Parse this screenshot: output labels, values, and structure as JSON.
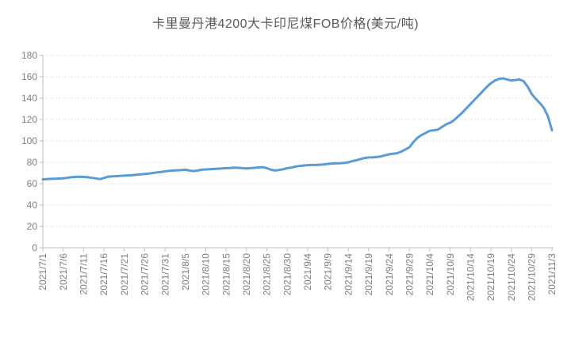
{
  "chart_data": {
    "type": "line",
    "title": "卡里曼丹港4200大卡印尼煤FOB价格(美元/吨)",
    "xlabel": "",
    "ylabel": "",
    "ylim": [
      0,
      180
    ],
    "y_ticks": [
      0,
      20,
      40,
      60,
      80,
      100,
      120,
      140,
      160,
      180
    ],
    "x_tick_interval": 5,
    "x_tick_labels": [
      "2021/7/1",
      "2021/7/6",
      "2021/7/11",
      "2021/7/16",
      "2021/7/21",
      "2021/7/26",
      "2021/7/31",
      "2021/8/5",
      "2021/8/10",
      "2021/8/15",
      "2021/8/20",
      "2021/8/25",
      "2021/8/30",
      "2021/9/4",
      "2021/9/9",
      "2021/9/14",
      "2021/9/19",
      "2021/9/24",
      "2021/9/29",
      "2021/10/4",
      "2021/10/9",
      "2021/10/14",
      "2021/10/19",
      "2021/10/24",
      "2021/10/29",
      "2021/11/3"
    ],
    "grid": "horizontal-dotted",
    "legend": "none",
    "x": [
      "2021/7/1",
      "2021/7/2",
      "2021/7/3",
      "2021/7/4",
      "2021/7/5",
      "2021/7/6",
      "2021/7/7",
      "2021/7/8",
      "2021/7/9",
      "2021/7/10",
      "2021/7/11",
      "2021/7/12",
      "2021/7/13",
      "2021/7/14",
      "2021/7/15",
      "2021/7/16",
      "2021/7/17",
      "2021/7/18",
      "2021/7/19",
      "2021/7/20",
      "2021/7/21",
      "2021/7/22",
      "2021/7/23",
      "2021/7/24",
      "2021/7/25",
      "2021/7/26",
      "2021/7/27",
      "2021/7/28",
      "2021/7/29",
      "2021/7/30",
      "2021/7/31",
      "2021/8/1",
      "2021/8/2",
      "2021/8/3",
      "2021/8/4",
      "2021/8/5",
      "2021/8/6",
      "2021/8/7",
      "2021/8/8",
      "2021/8/9",
      "2021/8/10",
      "2021/8/11",
      "2021/8/12",
      "2021/8/13",
      "2021/8/14",
      "2021/8/15",
      "2021/8/16",
      "2021/8/17",
      "2021/8/18",
      "2021/8/19",
      "2021/8/20",
      "2021/8/21",
      "2021/8/22",
      "2021/8/23",
      "2021/8/24",
      "2021/8/25",
      "2021/8/26",
      "2021/8/27",
      "2021/8/28",
      "2021/8/29",
      "2021/8/30",
      "2021/8/31",
      "2021/9/1",
      "2021/9/2",
      "2021/9/3",
      "2021/9/4",
      "2021/9/5",
      "2021/9/6",
      "2021/9/7",
      "2021/9/8",
      "2021/9/9",
      "2021/9/10",
      "2021/9/11",
      "2021/9/12",
      "2021/9/13",
      "2021/9/14",
      "2021/9/15",
      "2021/9/16",
      "2021/9/17",
      "2021/9/18",
      "2021/9/19",
      "2021/9/20",
      "2021/9/21",
      "2021/9/22",
      "2021/9/23",
      "2021/9/24",
      "2021/9/25",
      "2021/9/26",
      "2021/9/27",
      "2021/9/28",
      "2021/9/29",
      "2021/9/30",
      "2021/10/1",
      "2021/10/2",
      "2021/10/3",
      "2021/10/4",
      "2021/10/5",
      "2021/10/6",
      "2021/10/7",
      "2021/10/8",
      "2021/10/9",
      "2021/10/10",
      "2021/10/11",
      "2021/10/12",
      "2021/10/13",
      "2021/10/14",
      "2021/10/15",
      "2021/10/16",
      "2021/10/17",
      "2021/10/18",
      "2021/10/19",
      "2021/10/20",
      "2021/10/21",
      "2021/10/22",
      "2021/10/23",
      "2021/10/24",
      "2021/10/25",
      "2021/10/26",
      "2021/10/27",
      "2021/10/28",
      "2021/10/29",
      "2021/10/30",
      "2021/10/31",
      "2021/11/1",
      "2021/11/2",
      "2021/11/3"
    ],
    "values": [
      64.0,
      64.2,
      64.5,
      64.7,
      64.8,
      65.0,
      65.5,
      66.0,
      66.3,
      66.5,
      66.3,
      66.0,
      65.5,
      65.0,
      64.2,
      65.3,
      66.5,
      66.8,
      67.0,
      67.3,
      67.5,
      67.8,
      68.0,
      68.3,
      68.7,
      69.0,
      69.5,
      70.0,
      70.5,
      71.0,
      71.5,
      72.0,
      72.3,
      72.5,
      72.7,
      73.0,
      72.3,
      71.8,
      72.3,
      73.0,
      73.3,
      73.5,
      73.8,
      74.0,
      74.3,
      74.5,
      74.7,
      75.0,
      74.8,
      74.5,
      74.3,
      74.5,
      74.8,
      75.2,
      75.5,
      74.5,
      73.0,
      72.3,
      72.8,
      73.5,
      74.5,
      75.0,
      76.0,
      76.5,
      77.0,
      77.3,
      77.5,
      77.5,
      77.7,
      78.0,
      78.5,
      78.8,
      79.0,
      79.0,
      79.5,
      80.0,
      81.0,
      82.0,
      83.0,
      84.0,
      84.5,
      84.7,
      85.0,
      85.5,
      86.5,
      87.5,
      88.0,
      88.5,
      90.0,
      92.0,
      94.0,
      99.0,
      103.0,
      105.5,
      107.5,
      109.5,
      110.0,
      110.5,
      113.0,
      115.5,
      117.0,
      119.5,
      123.0,
      126.5,
      130.5,
      134.5,
      138.5,
      142.5,
      146.5,
      150.5,
      154.0,
      156.5,
      158.0,
      158.5,
      157.5,
      156.5,
      157.0,
      157.5,
      156.0,
      151.0,
      144.0,
      139.5,
      135.5,
      131.0,
      123.0,
      110.0
    ],
    "colors": {
      "line": "#5B9BD5",
      "gridline": "#D9D9D9",
      "axis": "#BFBFBF",
      "title_text": "#595959",
      "tick_text": "#7F7F7F",
      "background": "#FFFFFF"
    }
  }
}
